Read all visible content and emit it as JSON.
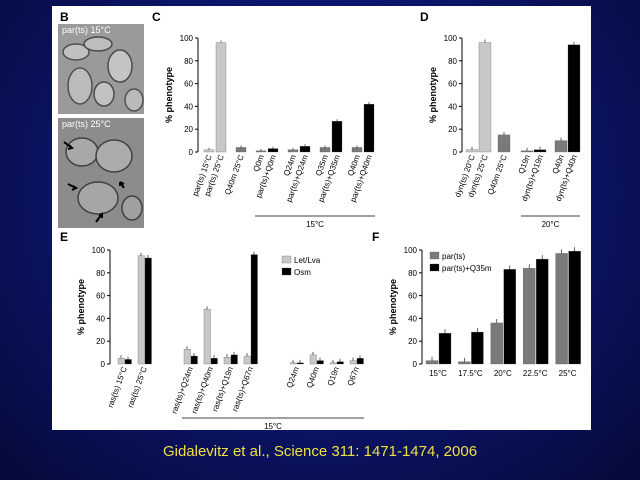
{
  "citation": "Gidalevitz et al., Science 311: 1471-1474, 2006",
  "panel_letters": {
    "b": "B",
    "c": "C",
    "d": "D",
    "e": "E",
    "f": "F"
  },
  "micrographs": [
    {
      "label": "par(ts) 15°C"
    },
    {
      "label": "par(ts) 25°C"
    }
  ],
  "colors": {
    "light_gray": "#c8c8c8",
    "dark_gray": "#7a7a7a",
    "black": "#000000",
    "slide_bg": "#0d1670",
    "citation": "#f0e040"
  },
  "chart_data": [
    {
      "panel": "C",
      "type": "bar",
      "ylabel": "% phenotype",
      "ylim": [
        0,
        100
      ],
      "yticks": [
        0,
        20,
        40,
        60,
        80,
        100
      ],
      "group_label": "15°C",
      "categories": [
        "par(ts) 15°C",
        "par(ts) 25°C",
        "Q40m 25°C",
        "Q0m",
        "par(ts)+Q0m",
        "Q24m",
        "par(ts)+Q24m",
        "Q35m",
        "par(ts)+Q35m",
        "Q40m",
        "par(ts)+Q40m"
      ],
      "values": [
        2,
        96,
        4,
        1,
        3,
        2,
        5,
        4,
        27,
        4,
        42
      ],
      "colors": [
        "light",
        "light",
        "dark",
        "dark",
        "black",
        "dark",
        "black",
        "dark",
        "black",
        "dark",
        "black"
      ]
    },
    {
      "panel": "D",
      "type": "bar",
      "ylabel": "% phenotype",
      "ylim": [
        0,
        100
      ],
      "yticks": [
        0,
        20,
        40,
        60,
        80,
        100
      ],
      "group_label": "20°C",
      "categories": [
        "dyn(ts) 20°C",
        "dyn(ts) 25°C",
        "Q40m 25°C",
        "Q19n",
        "dyn(ts)+Q19n",
        "Q40n",
        "dyn(ts)+Q40n"
      ],
      "values": [
        2,
        96,
        15,
        1,
        2,
        10,
        94
      ],
      "colors": [
        "light",
        "light",
        "dark",
        "dark",
        "black",
        "dark",
        "black"
      ]
    },
    {
      "panel": "E",
      "type": "bar",
      "ylabel": "% phenotype",
      "ylim": [
        0,
        100
      ],
      "yticks": [
        0,
        20,
        40,
        60,
        80,
        100
      ],
      "group_label": "15°C",
      "categories": [
        "ras(ts) 15°C",
        "ras(ts) 25°C",
        "ras(ts)+Q24m",
        "ras(ts)+Q40m",
        "ras(ts)+Q19n",
        "ras(ts)+Q67n",
        "Q24m",
        "Q40m",
        "Q19n",
        "Q67n"
      ],
      "legend": [
        "Let/Lva",
        "Osm"
      ],
      "series": [
        {
          "name": "Let/Lva",
          "values": [
            5,
            95,
            13,
            48,
            6,
            7,
            1,
            8,
            1,
            3
          ]
        },
        {
          "name": "Osm",
          "values": [
            4,
            93,
            7,
            5,
            8,
            96,
            1,
            3,
            2,
            5
          ]
        }
      ]
    },
    {
      "panel": "F",
      "type": "bar",
      "ylabel": "% phenotype",
      "ylim": [
        0,
        100
      ],
      "yticks": [
        0,
        20,
        40,
        60,
        80,
        100
      ],
      "categories": [
        "15°C",
        "17.5°C",
        "20°C",
        "22.5°C",
        "25°C"
      ],
      "legend": [
        "par(ts)",
        "par(ts)+Q35m"
      ],
      "series": [
        {
          "name": "par(ts)",
          "values": [
            3,
            2,
            36,
            84,
            97
          ]
        },
        {
          "name": "par(ts)+Q35m",
          "values": [
            27,
            28,
            83,
            92,
            99
          ]
        }
      ]
    }
  ]
}
